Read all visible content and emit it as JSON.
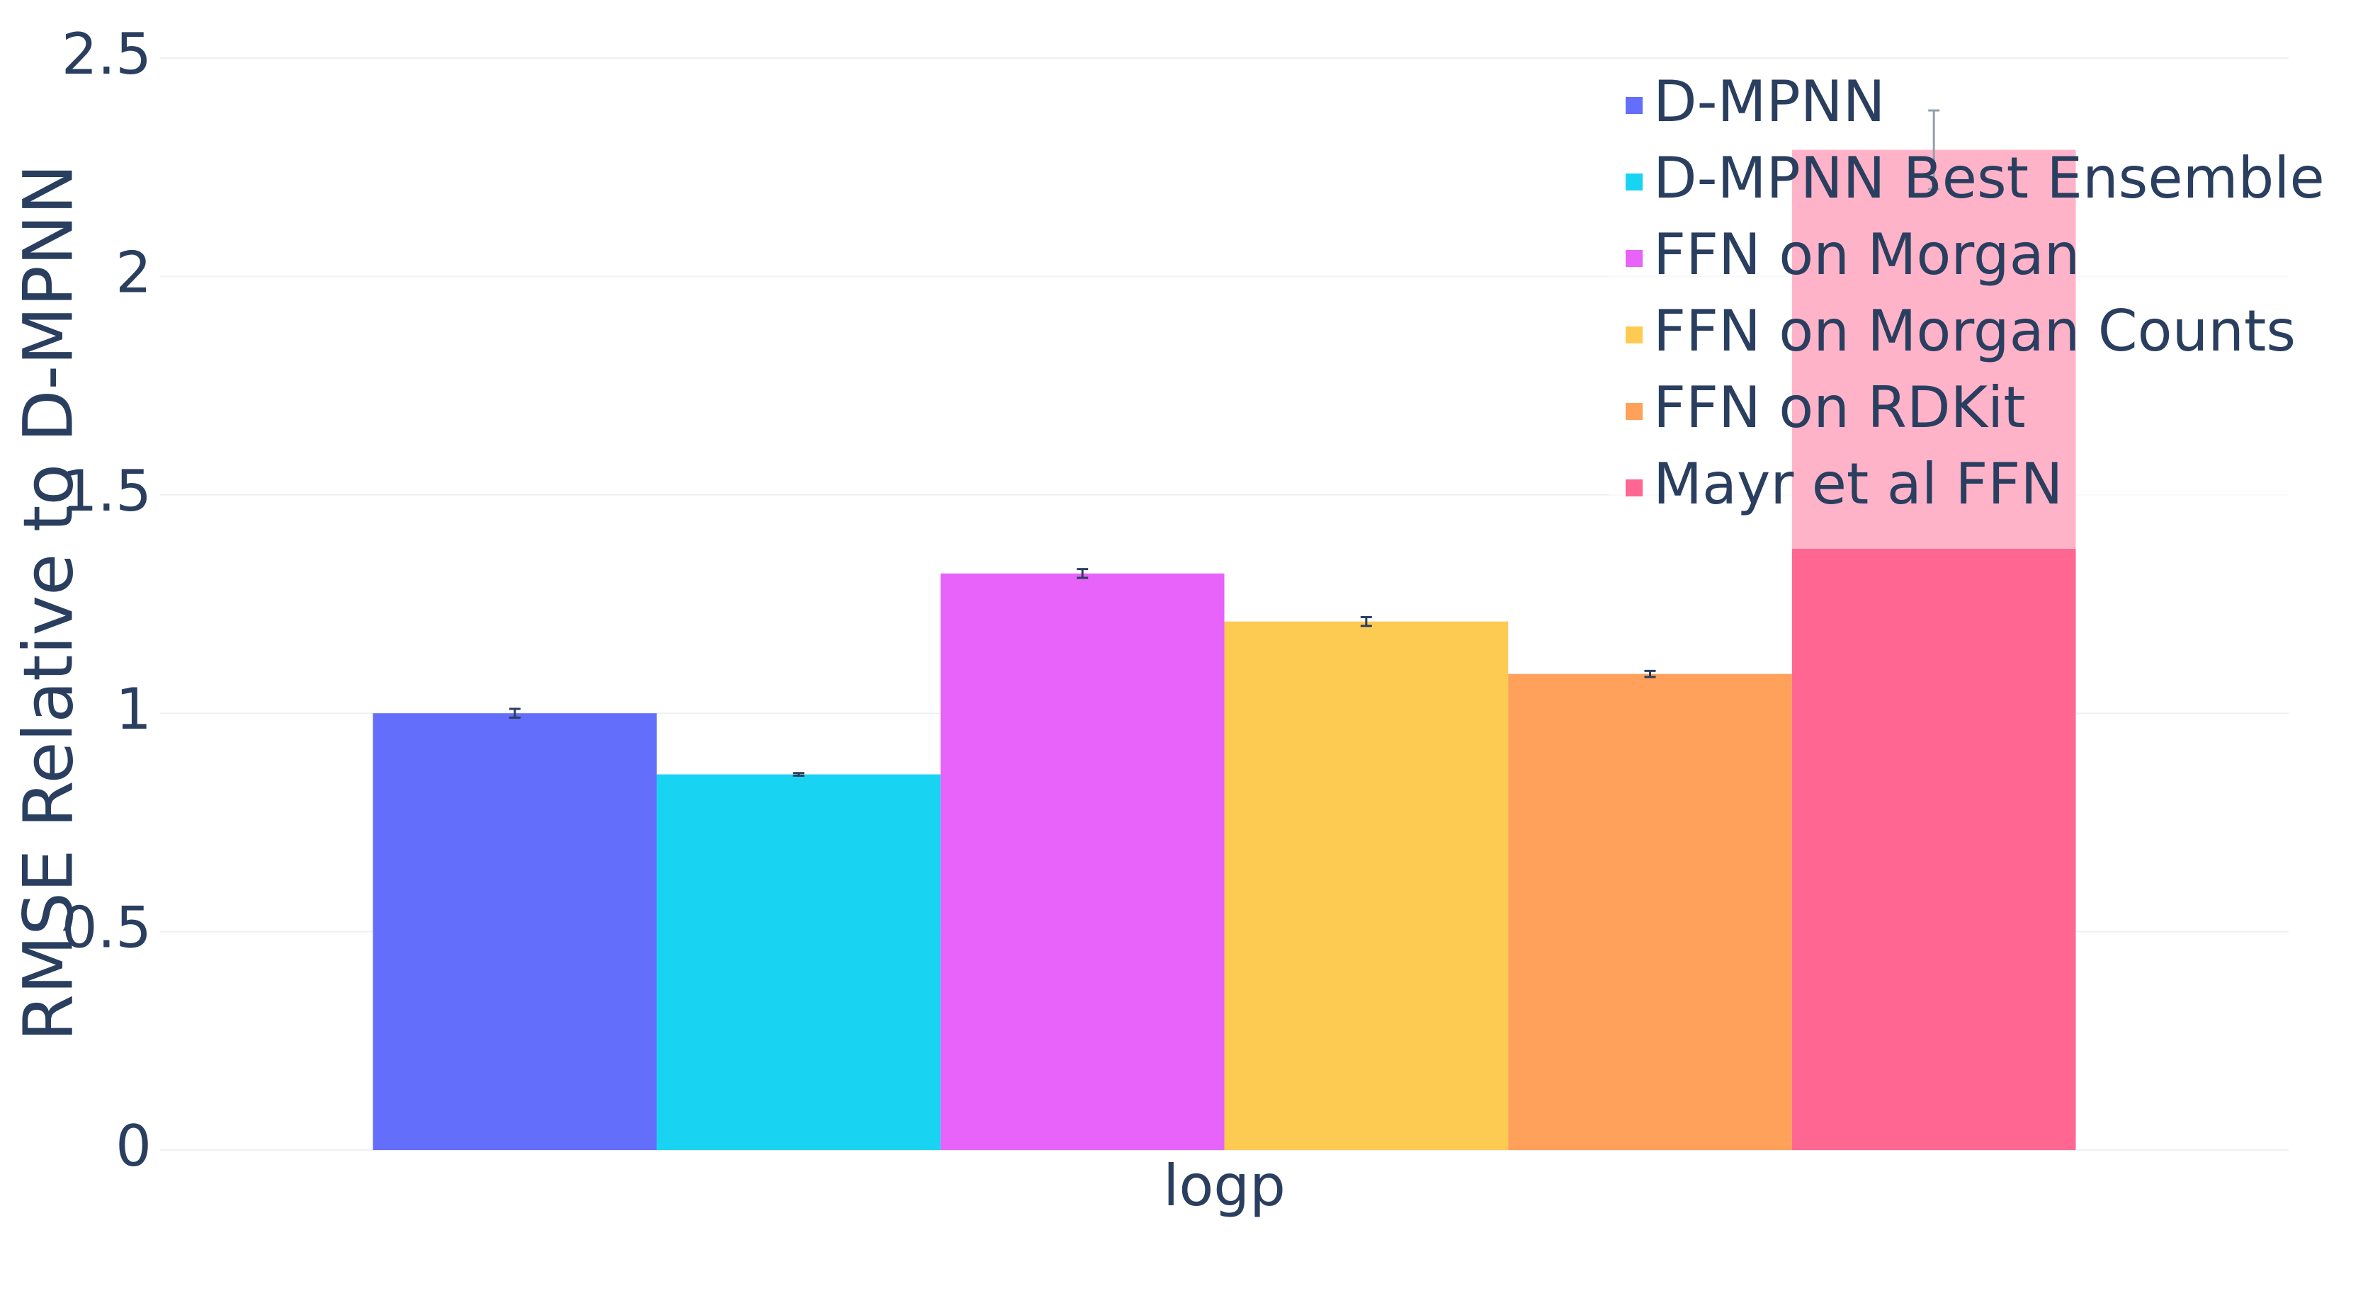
{
  "chart_data": {
    "type": "bar",
    "y_label": "RMSE Relative to D-MPNN",
    "categories": [
      "logp"
    ],
    "series": [
      {
        "name": "D-MPNN",
        "color": "#636EFA",
        "values": [
          1.0
        ],
        "errors": [
          0.01
        ]
      },
      {
        "name": "D-MPNN Best Ensemble",
        "color": "#19D3F3",
        "values": [
          0.86
        ],
        "errors": [
          0.003
        ]
      },
      {
        "name": "FFN on Morgan",
        "color": "#E763FA",
        "values": [
          1.32
        ],
        "errors": [
          0.01
        ]
      },
      {
        "name": "FFN on Morgan Counts",
        "color": "#FECB52",
        "values": [
          1.21
        ],
        "errors": [
          0.01
        ]
      },
      {
        "name": "FFN on RDKit",
        "color": "#FFA15A",
        "values": [
          1.09
        ],
        "errors": [
          0.007
        ]
      },
      {
        "name": "Mayr et al FFN",
        "color": "#FF6692",
        "values": [
          2.29
        ],
        "errors": [
          0.09
        ]
      }
    ],
    "ylim": [
      0,
      2.5
    ],
    "yticks": [
      0,
      0.5,
      1,
      1.5,
      2,
      2.5
    ],
    "grid": true,
    "legend": "top-right"
  }
}
